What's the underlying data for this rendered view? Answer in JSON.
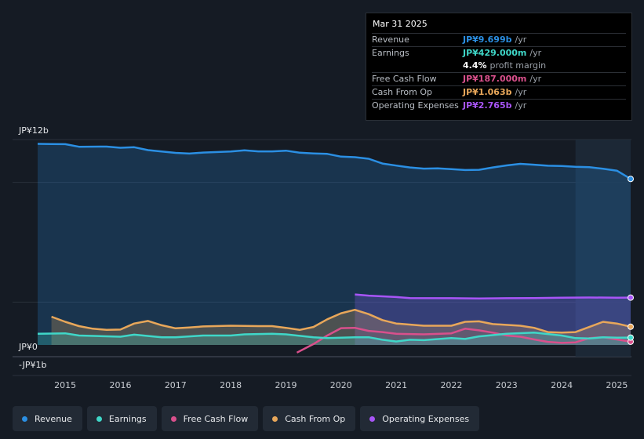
{
  "chart_data": {
    "type": "line",
    "x_range": [
      2014.5,
      2025.25
    ],
    "ylim": [
      -1,
      12
    ],
    "y_labels": [
      {
        "label": "JP¥12b",
        "value": 12
      },
      {
        "label": "JP¥0",
        "value": 0
      },
      {
        "label": "-JP¥1b",
        "value": -1
      }
    ],
    "x_ticks": [
      "2015",
      "2016",
      "2017",
      "2018",
      "2019",
      "2020",
      "2021",
      "2022",
      "2023",
      "2024",
      "2025"
    ],
    "highlight_start": 2024.25,
    "series": [
      {
        "key": "opex",
        "name": "Operating Expenses",
        "color": "#a855f7",
        "area": true,
        "points": [
          [
            2020.25,
            2.95
          ],
          [
            2020.5,
            2.88
          ],
          [
            2021,
            2.8
          ],
          [
            2021.25,
            2.74
          ],
          [
            2022,
            2.73
          ],
          [
            2022.5,
            2.71
          ],
          [
            2023,
            2.73
          ],
          [
            2023.5,
            2.74
          ],
          [
            2024,
            2.76
          ],
          [
            2024.5,
            2.77
          ],
          [
            2025,
            2.76
          ],
          [
            2025.25,
            2.765
          ]
        ]
      },
      {
        "key": "revenue",
        "name": "Revenue",
        "color": "#2b8fe3",
        "area": true,
        "points": [
          [
            2014.5,
            11.75
          ],
          [
            2014.75,
            11.74
          ],
          [
            2015,
            11.73
          ],
          [
            2015.25,
            11.58
          ],
          [
            2015.75,
            11.59
          ],
          [
            2016,
            11.52
          ],
          [
            2016.25,
            11.55
          ],
          [
            2016.5,
            11.38
          ],
          [
            2016.75,
            11.3
          ],
          [
            2017,
            11.22
          ],
          [
            2017.25,
            11.18
          ],
          [
            2017.5,
            11.24
          ],
          [
            2018,
            11.3
          ],
          [
            2018.25,
            11.37
          ],
          [
            2018.5,
            11.31
          ],
          [
            2018.75,
            11.31
          ],
          [
            2019,
            11.35
          ],
          [
            2019.25,
            11.23
          ],
          [
            2019.5,
            11.19
          ],
          [
            2019.75,
            11.16
          ],
          [
            2020,
            11.0
          ],
          [
            2020.25,
            10.97
          ],
          [
            2020.5,
            10.88
          ],
          [
            2020.75,
            10.6
          ],
          [
            2021,
            10.48
          ],
          [
            2021.25,
            10.37
          ],
          [
            2021.5,
            10.3
          ],
          [
            2021.75,
            10.32
          ],
          [
            2022,
            10.27
          ],
          [
            2022.25,
            10.22
          ],
          [
            2022.5,
            10.23
          ],
          [
            2022.75,
            10.37
          ],
          [
            2023,
            10.49
          ],
          [
            2023.25,
            10.58
          ],
          [
            2023.5,
            10.53
          ],
          [
            2023.75,
            10.47
          ],
          [
            2024,
            10.45
          ],
          [
            2024.25,
            10.41
          ],
          [
            2024.5,
            10.39
          ],
          [
            2024.75,
            10.29
          ],
          [
            2025,
            10.18
          ],
          [
            2025.25,
            9.699
          ]
        ]
      },
      {
        "key": "cfo",
        "name": "Cash From Op",
        "color": "#e8a75a",
        "area": true,
        "points": [
          [
            2014.75,
            1.65
          ],
          [
            2015,
            1.35
          ],
          [
            2015.25,
            1.1
          ],
          [
            2015.5,
            0.95
          ],
          [
            2015.75,
            0.88
          ],
          [
            2016,
            0.9
          ],
          [
            2016.25,
            1.25
          ],
          [
            2016.5,
            1.4
          ],
          [
            2016.75,
            1.15
          ],
          [
            2017,
            0.97
          ],
          [
            2017.25,
            1.02
          ],
          [
            2017.5,
            1.08
          ],
          [
            2018,
            1.12
          ],
          [
            2018.5,
            1.1
          ],
          [
            2018.75,
            1.1
          ],
          [
            2019,
            1.0
          ],
          [
            2019.25,
            0.88
          ],
          [
            2019.5,
            1.05
          ],
          [
            2019.75,
            1.5
          ],
          [
            2020,
            1.85
          ],
          [
            2020.25,
            2.05
          ],
          [
            2020.5,
            1.8
          ],
          [
            2020.75,
            1.45
          ],
          [
            2021,
            1.25
          ],
          [
            2021.5,
            1.12
          ],
          [
            2022,
            1.12
          ],
          [
            2022.25,
            1.35
          ],
          [
            2022.5,
            1.38
          ],
          [
            2022.75,
            1.22
          ],
          [
            2023.25,
            1.12
          ],
          [
            2023.5,
            1.0
          ],
          [
            2023.75,
            0.75
          ],
          [
            2024,
            0.72
          ],
          [
            2024.25,
            0.75
          ],
          [
            2024.5,
            1.05
          ],
          [
            2024.75,
            1.35
          ],
          [
            2025,
            1.25
          ],
          [
            2025.25,
            1.063
          ]
        ]
      },
      {
        "key": "fcf",
        "name": "Free Cash Flow",
        "color": "#d9508c",
        "area": false,
        "points": [
          [
            2019.2,
            -0.45
          ],
          [
            2019.5,
            0.05
          ],
          [
            2019.75,
            0.55
          ],
          [
            2020,
            0.98
          ],
          [
            2020.25,
            1.0
          ],
          [
            2020.5,
            0.82
          ],
          [
            2020.75,
            0.75
          ],
          [
            2021,
            0.65
          ],
          [
            2021.5,
            0.62
          ],
          [
            2022,
            0.68
          ],
          [
            2022.25,
            0.95
          ],
          [
            2022.5,
            0.85
          ],
          [
            2022.75,
            0.72
          ],
          [
            2023,
            0.55
          ],
          [
            2023.25,
            0.48
          ],
          [
            2023.5,
            0.32
          ],
          [
            2023.75,
            0.18
          ],
          [
            2024,
            0.12
          ],
          [
            2024.25,
            0.15
          ],
          [
            2024.5,
            0.4
          ],
          [
            2024.75,
            0.45
          ],
          [
            2025,
            0.32
          ],
          [
            2025.25,
            0.187
          ]
        ]
      },
      {
        "key": "earnings",
        "name": "Earnings",
        "color": "#3fd7c8",
        "area": true,
        "points": [
          [
            2014.5,
            0.65
          ],
          [
            2015,
            0.68
          ],
          [
            2015.25,
            0.55
          ],
          [
            2016,
            0.48
          ],
          [
            2016.25,
            0.6
          ],
          [
            2016.75,
            0.45
          ],
          [
            2017,
            0.45
          ],
          [
            2017.5,
            0.55
          ],
          [
            2018,
            0.55
          ],
          [
            2018.25,
            0.62
          ],
          [
            2018.75,
            0.65
          ],
          [
            2019,
            0.62
          ],
          [
            2019.5,
            0.45
          ],
          [
            2019.75,
            0.4
          ],
          [
            2020,
            0.42
          ],
          [
            2020.25,
            0.45
          ],
          [
            2020.5,
            0.45
          ],
          [
            2020.75,
            0.3
          ],
          [
            2021,
            0.2
          ],
          [
            2021.25,
            0.3
          ],
          [
            2021.5,
            0.28
          ],
          [
            2022,
            0.4
          ],
          [
            2022.25,
            0.35
          ],
          [
            2022.5,
            0.5
          ],
          [
            2023,
            0.65
          ],
          [
            2023.5,
            0.72
          ],
          [
            2024,
            0.55
          ],
          [
            2024.25,
            0.4
          ],
          [
            2024.5,
            0.38
          ],
          [
            2024.75,
            0.45
          ],
          [
            2025,
            0.42
          ],
          [
            2025.25,
            0.429
          ]
        ]
      }
    ]
  },
  "tooltip": {
    "date": "Mar 31 2025",
    "rows": [
      {
        "label": "Revenue",
        "value": "JP¥9.699b",
        "unit": "/yr",
        "color": "#2b8fe3"
      },
      {
        "label": "Earnings",
        "value": "JP¥429.000m",
        "unit": "/yr",
        "color": "#3fd7c8"
      },
      {
        "label": "",
        "value": "4.4%",
        "unit": "profit margin",
        "color": "#ffffff"
      },
      {
        "label": "Free Cash Flow",
        "value": "JP¥187.000m",
        "unit": "/yr",
        "color": "#d9508c"
      },
      {
        "label": "Cash From Op",
        "value": "JP¥1.063b",
        "unit": "/yr",
        "color": "#e8a75a"
      },
      {
        "label": "Operating Expenses",
        "value": "JP¥2.765b",
        "unit": "/yr",
        "color": "#a855f7"
      }
    ]
  },
  "legend": [
    {
      "label": "Revenue",
      "color": "#2b8fe3"
    },
    {
      "label": "Earnings",
      "color": "#3fd7c8"
    },
    {
      "label": "Free Cash Flow",
      "color": "#d9508c"
    },
    {
      "label": "Cash From Op",
      "color": "#e8a75a"
    },
    {
      "label": "Operating Expenses",
      "color": "#a855f7"
    }
  ]
}
